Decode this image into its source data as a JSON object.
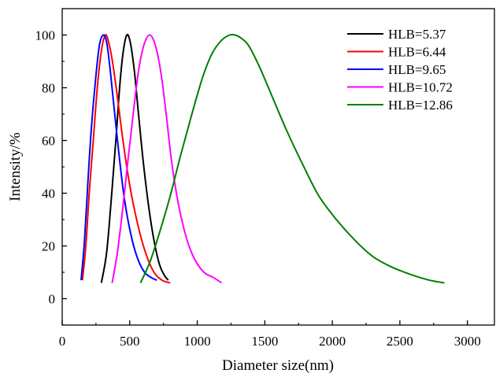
{
  "chart_data": {
    "type": "line",
    "xlabel": "Diameter size(nm)",
    "ylabel": "Intensity/%",
    "xlim": [
      0,
      3200
    ],
    "ylim": [
      -10,
      110
    ],
    "xticks": [
      0,
      500,
      1000,
      1500,
      2000,
      2500,
      3000
    ],
    "yticks": [
      0,
      20,
      40,
      60,
      80,
      100
    ],
    "grid": false,
    "legend_position": "top-right",
    "series": [
      {
        "name": "HLB=5.37",
        "color": "#000000",
        "x": [
          290,
          330,
          370,
          400,
          425,
          450,
          478,
          505,
          535,
          565,
          600,
          640,
          680,
          720,
          755,
          785
        ],
        "y": [
          6,
          18,
          42,
          62,
          80,
          93,
          100,
          97,
          86,
          70,
          52,
          35,
          22,
          13,
          9,
          7
        ]
      },
      {
        "name": "HLB=6.44",
        "color": "#ff0000",
        "x": [
          150,
          175,
          200,
          230,
          260,
          290,
          320,
          345,
          375,
          410,
          450,
          500,
          560,
          620,
          680,
          740,
          800
        ],
        "y": [
          7,
          20,
          40,
          60,
          80,
          94,
          100,
          97,
          89,
          76,
          60,
          43,
          28,
          17,
          10,
          7,
          6
        ]
      },
      {
        "name": "HLB=9.65",
        "color": "#0000ff",
        "x": [
          140,
          165,
          190,
          215,
          245,
          275,
          305,
          330,
          355,
          385,
          420,
          460,
          510,
          560,
          610,
          660,
          700
        ],
        "y": [
          7,
          22,
          44,
          64,
          82,
          96,
          100,
          97,
          87,
          72,
          55,
          38,
          24,
          15,
          10,
          8,
          7
        ]
      },
      {
        "name": "HLB=10.72",
        "color": "#ff00ff",
        "x": [
          370,
          410,
          450,
          490,
          530,
          570,
          610,
          650,
          690,
          730,
          770,
          810,
          860,
          920,
          980,
          1050,
          1120,
          1180
        ],
        "y": [
          6,
          18,
          35,
          54,
          72,
          88,
          97,
          100,
          96,
          86,
          70,
          52,
          36,
          23,
          15,
          10,
          8,
          6
        ]
      },
      {
        "name": "HLB=12.86",
        "color": "#007f00",
        "x": [
          580,
          650,
          720,
          800,
          880,
          960,
          1040,
          1110,
          1180,
          1240,
          1280,
          1320,
          1380,
          1460,
          1560,
          1660,
          1780,
          1900,
          2030,
          2170,
          2300,
          2440,
          2590,
          2720,
          2830
        ],
        "y": [
          6,
          14,
          25,
          39,
          55,
          70,
          84,
          93,
          98,
          100,
          100,
          99,
          96,
          88,
          76,
          64,
          51,
          39,
          30,
          22,
          16,
          12,
          9,
          7,
          6
        ]
      }
    ]
  }
}
